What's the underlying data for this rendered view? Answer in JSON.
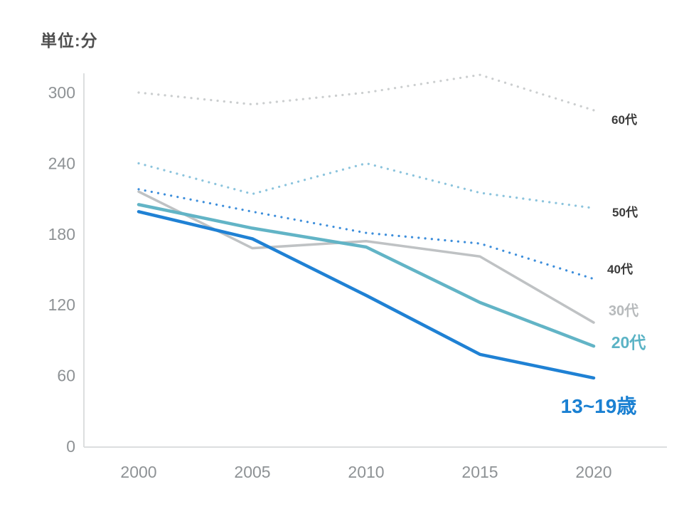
{
  "title": "単位:分",
  "axis": {
    "color": "#dcdedf",
    "tick_color": "#8e9295"
  },
  "chart_data": {
    "type": "line",
    "title": "単位:分 (TV viewing minutes by age group)",
    "x": [
      2000,
      2005,
      2010,
      2015,
      2020
    ],
    "x_tick_labels": [
      "2000",
      "2005",
      "2010",
      "2015",
      "2020"
    ],
    "y_ticks": [
      300,
      240,
      180,
      120,
      60,
      0
    ],
    "ylim": [
      0,
      330
    ],
    "xlabel": "",
    "ylabel": "分",
    "grid": false,
    "legend_position": "right-end-of-lines",
    "series": [
      {
        "name": "60代",
        "style": "dotted",
        "color": "#cbcecf",
        "label_color": "#3b3b3b",
        "values": [
          300,
          290,
          300,
          315,
          285
        ]
      },
      {
        "name": "50代",
        "style": "dotted",
        "color": "#8cc4dd",
        "label_color": "#3b3b3b",
        "values": [
          240,
          214,
          240,
          215,
          202
        ]
      },
      {
        "name": "40代",
        "style": "dotted",
        "color": "#3d8edb",
        "label_color": "#3b3b3b",
        "values": [
          218,
          199,
          181,
          172,
          142
        ]
      },
      {
        "name": "30代",
        "style": "solid",
        "color": "#bfc2c4",
        "label_color": "#b7babc",
        "values": [
          216,
          168,
          174,
          161,
          105
        ]
      },
      {
        "name": "20代",
        "style": "solid",
        "color": "#62b4c6",
        "label_color": "#5bb3c5",
        "values": [
          205,
          185,
          169,
          122,
          85
        ]
      },
      {
        "name": "13~19歳",
        "style": "solid",
        "color": "#1f81d4",
        "label_color": "#1a80d2",
        "values": [
          199,
          176,
          128,
          78,
          58
        ]
      }
    ]
  }
}
